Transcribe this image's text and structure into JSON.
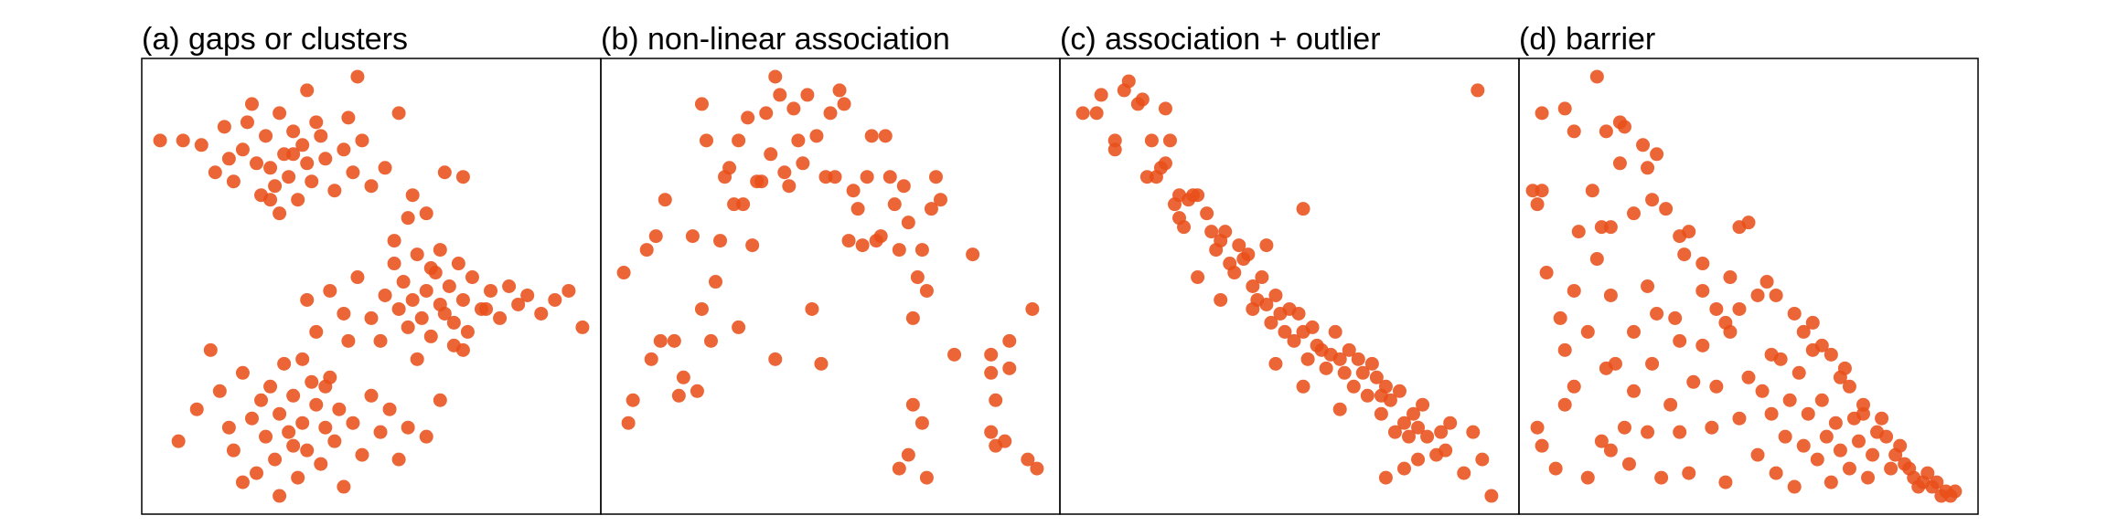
{
  "chart_data": [
    {
      "type": "scatter",
      "title": "(a) gaps or clusters",
      "color": "#e8501a",
      "xlim": [
        0,
        100
      ],
      "ylim": [
        0,
        100
      ],
      "x": [
        4,
        9,
        13,
        16,
        18,
        20,
        22,
        23,
        25,
        26,
        27,
        28,
        29,
        30,
        31,
        32,
        33,
        34,
        35,
        36,
        37,
        38,
        40,
        42,
        44,
        46,
        48,
        50,
        53,
        56,
        59,
        62,
        66,
        70,
        24,
        28,
        33,
        39,
        45,
        19,
        30,
        36,
        36,
        38,
        41,
        44,
        47,
        50,
        52,
        53,
        55,
        56,
        57,
        58,
        59,
        60,
        61,
        62,
        63,
        64,
        65,
        66,
        67,
        68,
        69,
        70,
        71,
        72,
        74,
        76,
        78,
        80,
        82,
        84,
        87,
        90,
        93,
        96,
        55,
        60,
        65,
        70,
        58,
        63,
        68,
        75,
        8,
        12,
        15,
        17,
        19,
        20,
        22,
        24,
        25,
        26,
        27,
        28,
        29,
        30,
        31,
        32,
        33,
        34,
        35,
        36,
        37,
        38,
        39,
        40,
        41,
        42,
        43,
        44,
        46,
        48,
        50,
        52,
        54,
        56,
        58,
        62,
        65,
        30,
        35,
        40,
        45,
        22,
        33,
        47
      ],
      "y": [
        82,
        82,
        81,
        75,
        85,
        73,
        80,
        86,
        77,
        70,
        83,
        76,
        72,
        88,
        79,
        74,
        84,
        69,
        81,
        77,
        73,
        86,
        78,
        71,
        80,
        75,
        82,
        72,
        76,
        88,
        70,
        66,
        75,
        74,
        90,
        69,
        79,
        83,
        87,
        78,
        66,
        93,
        47,
        40,
        49,
        44,
        52,
        43,
        38,
        48,
        55,
        45,
        51,
        41,
        47,
        57,
        43,
        49,
        39,
        53,
        46,
        44,
        50,
        42,
        55,
        47,
        40,
        52,
        45,
        49,
        43,
        50,
        46,
        48,
        44,
        47,
        49,
        41,
        60,
        34,
        58,
        36,
        65,
        54,
        37,
        45,
        16,
        23,
        36,
        27,
        19,
        14,
        31,
        21,
        9,
        25,
        17,
        28,
        12,
        22,
        33,
        18,
        26,
        8,
        20,
        14,
        29,
        24,
        11,
        19,
        30,
        16,
        23,
        6,
        20,
        13,
        26,
        18,
        23,
        12,
        19,
        17,
        25,
        4,
        34,
        28,
        38,
        7,
        15,
        96
      ]
    },
    {
      "type": "scatter",
      "title": "(b) non-linear association",
      "color": "#e8501a",
      "xlim": [
        0,
        100
      ],
      "ylim": [
        0,
        100
      ],
      "x": [
        7,
        6,
        5,
        10,
        12,
        13,
        11,
        14,
        16,
        17,
        18,
        20,
        21,
        22,
        22,
        23,
        24,
        25,
        26,
        27,
        28,
        29,
        30,
        30,
        31,
        32,
        33,
        34,
        35,
        36,
        37,
        38,
        38,
        39,
        40,
        41,
        42,
        43,
        44,
        45,
        46,
        47,
        48,
        49,
        50,
        51,
        52,
        53,
        54,
        55,
        56,
        57,
        58,
        59,
        60,
        61,
        62,
        63,
        64,
        65,
        66,
        67,
        68,
        68,
        69,
        70,
        71,
        72,
        73,
        74,
        65,
        67,
        70,
        71,
        77,
        81,
        85,
        85,
        86,
        85,
        86,
        88,
        89,
        89,
        94,
        95,
        93
      ],
      "y": [
        25,
        20,
        53,
        58,
        61,
        38,
        34,
        69,
        38,
        26,
        30,
        61,
        27,
        90,
        45,
        82,
        38,
        51,
        60,
        74,
        76,
        68,
        41,
        82,
        68,
        87,
        59,
        73,
        73,
        88,
        79,
        96,
        34,
        92,
        75,
        72,
        89,
        82,
        77,
        92,
        45,
        83,
        33,
        74,
        88,
        74,
        93,
        90,
        60,
        71,
        67,
        59,
        74,
        83,
        60,
        61,
        83,
        74,
        68,
        58,
        72,
        64,
        43,
        24,
        52,
        58,
        49,
        67,
        74,
        69,
        10,
        13,
        20,
        8,
        35,
        57,
        35,
        31,
        25,
        18,
        15,
        16,
        38,
        32,
        45,
        10,
        12
      ]
    },
    {
      "type": "scatter",
      "title": "(c) association + outlier",
      "color": "#e8501a",
      "xlim": [
        0,
        100
      ],
      "ylim": [
        0,
        100
      ],
      "x": [
        5,
        8,
        9,
        12,
        14,
        15,
        17,
        18,
        20,
        19,
        21,
        22,
        23,
        24,
        25,
        26,
        27,
        28,
        29,
        30,
        30,
        32,
        33,
        34,
        35,
        36,
        37,
        38,
        39,
        40,
        41,
        42,
        43,
        44,
        45,
        45,
        46,
        47,
        48,
        49,
        50,
        51,
        52,
        53,
        54,
        55,
        56,
        57,
        58,
        59,
        60,
        61,
        62,
        63,
        64,
        65,
        66,
        67,
        68,
        69,
        70,
        70,
        71,
        72,
        73,
        74,
        75,
        76,
        77,
        78,
        79,
        80,
        82,
        83,
        84,
        85,
        88,
        90,
        92,
        94,
        91,
        23,
        12,
        26,
        35,
        47,
        53,
        61,
        71,
        75,
        78,
        53,
        42
      ],
      "y": [
        88,
        88,
        92,
        82,
        93,
        95,
        90,
        91,
        82,
        74,
        74,
        76,
        77,
        82,
        68,
        70,
        63,
        69,
        70,
        70,
        52,
        66,
        62,
        58,
        60,
        62,
        55,
        53,
        59,
        56,
        57,
        50,
        47,
        52,
        59,
        46,
        42,
        48,
        44,
        40,
        45,
        38,
        44,
        40,
        34,
        41,
        37,
        36,
        32,
        35,
        40,
        34,
        31,
        36,
        28,
        34,
        31,
        26,
        33,
        30,
        22,
        26,
        28,
        25,
        18,
        27,
        20,
        17,
        22,
        19,
        24,
        17,
        13,
        18,
        14,
        20,
        9,
        18,
        12,
        4,
        93,
        89,
        80,
        65,
        47,
        33,
        28,
        23,
        8,
        10,
        12,
        67,
        45
      ]
    },
    {
      "type": "scatter",
      "title": "(d) barrier",
      "color": "#e8501a",
      "xlim": [
        0,
        100
      ],
      "ylim": [
        0,
        100
      ],
      "x": [
        5,
        10,
        12,
        17,
        22,
        5,
        4,
        3,
        6,
        9,
        12,
        13,
        17,
        16,
        18,
        19,
        20,
        22,
        23,
        25,
        27,
        28,
        30,
        29,
        32,
        35,
        37,
        36,
        40,
        43,
        45,
        46,
        48,
        50,
        54,
        56,
        60,
        62,
        64,
        66,
        68,
        70,
        72,
        75,
        78,
        80,
        82,
        84,
        86,
        88,
        90,
        93,
        94,
        95,
        83,
        85,
        87,
        89,
        91,
        92,
        4,
        5,
        8,
        10,
        12,
        15,
        18,
        19,
        20,
        21,
        23,
        24,
        25,
        28,
        29,
        31,
        33,
        35,
        37,
        38,
        40,
        42,
        43,
        45,
        46,
        48,
        50,
        52,
        53,
        55,
        56,
        57,
        58,
        59,
        60,
        61,
        62,
        63,
        64,
        65,
        66,
        67,
        68,
        69,
        70,
        71,
        72,
        73,
        74,
        75,
        76,
        77,
        79,
        81,
        25,
        30,
        35,
        15,
        10,
        40,
        48,
        52,
        55,
        20,
        28,
        34
      ],
      "y": [
        88,
        89,
        84,
        96,
        86,
        71,
        68,
        71,
        53,
        43,
        49,
        62,
        56,
        71,
        63,
        84,
        63,
        77,
        85,
        66,
        81,
        76,
        79,
        69,
        67,
        61,
        62,
        57,
        49,
        45,
        42,
        52,
        63,
        64,
        51,
        48,
        44,
        40,
        42,
        37,
        35,
        30,
        28,
        22,
        18,
        17,
        13,
        11,
        8,
        7,
        6,
        5,
        4,
        5,
        15,
        10,
        6,
        9,
        7,
        4,
        19,
        15,
        10,
        24,
        28,
        8,
        16,
        32,
        14,
        33,
        19,
        11,
        27,
        18,
        33,
        8,
        24,
        18,
        9,
        29,
        37,
        19,
        28,
        7,
        40,
        21,
        30,
        13,
        27,
        22,
        9,
        34,
        17,
        25,
        6,
        31,
        15,
        22,
        36,
        12,
        25,
        17,
        7,
        20,
        14,
        32,
        10,
        21,
        16,
        24,
        8,
        13,
        21,
        10,
        40,
        44,
        38,
        40,
        36,
        55,
        45,
        48,
        35,
        48,
        50,
        43
      ]
    }
  ]
}
